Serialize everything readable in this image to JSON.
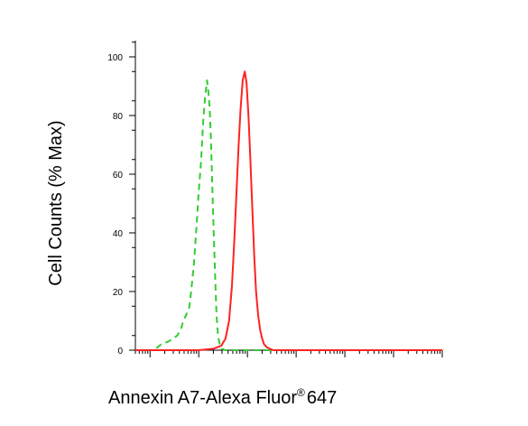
{
  "chart_data": {
    "type": "line",
    "ylabel": "Cell Counts (% Max)",
    "xlabel_text": "Annexin A7-Alexa Fluor",
    "xlabel_mark": "®",
    "xlabel_suffix": "647",
    "x_scale": "log",
    "xlim": [
      5,
      10000000
    ],
    "ylim": [
      0,
      100
    ],
    "yticks": [
      "0",
      "20",
      "40",
      "60",
      "80",
      "100"
    ],
    "series": [
      {
        "style": "dashed",
        "color": "#33cc33",
        "x": [
          5,
          12,
          17,
          24,
          30,
          36,
          43,
          48,
          55,
          63,
          70,
          80,
          90,
          100,
          112,
          123,
          135,
          148,
          158,
          168,
          178,
          190,
          203,
          217,
          232,
          248,
          270,
          300,
          350,
          500,
          1000,
          10000,
          100000,
          1000000,
          10000000
        ],
        "y": [
          0,
          0,
          2,
          3,
          4,
          5,
          7,
          10,
          12,
          14,
          20,
          30,
          42,
          54,
          65,
          78,
          86,
          92,
          88,
          82,
          72,
          56,
          40,
          25,
          12,
          5,
          2,
          0.5,
          0,
          0,
          0,
          0,
          0,
          0,
          0
        ]
      },
      {
        "style": "solid",
        "color": "#ff2222",
        "x": [
          5,
          100,
          200,
          290,
          355,
          420,
          480,
          540,
          600,
          660,
          720,
          800,
          880,
          960,
          1050,
          1150,
          1260,
          1380,
          1500,
          1660,
          1820,
          2000,
          2200,
          2500,
          2900,
          3400,
          4000,
          5000,
          10000,
          100000,
          1000000,
          10000000
        ],
        "y": [
          0,
          0,
          0.5,
          1.5,
          4,
          10,
          22,
          38,
          55,
          70,
          82,
          92,
          95,
          91,
          80,
          65,
          48,
          32,
          20,
          12,
          7,
          4,
          2,
          1,
          0.5,
          0,
          0,
          0,
          0,
          0,
          0,
          0
        ]
      }
    ]
  }
}
